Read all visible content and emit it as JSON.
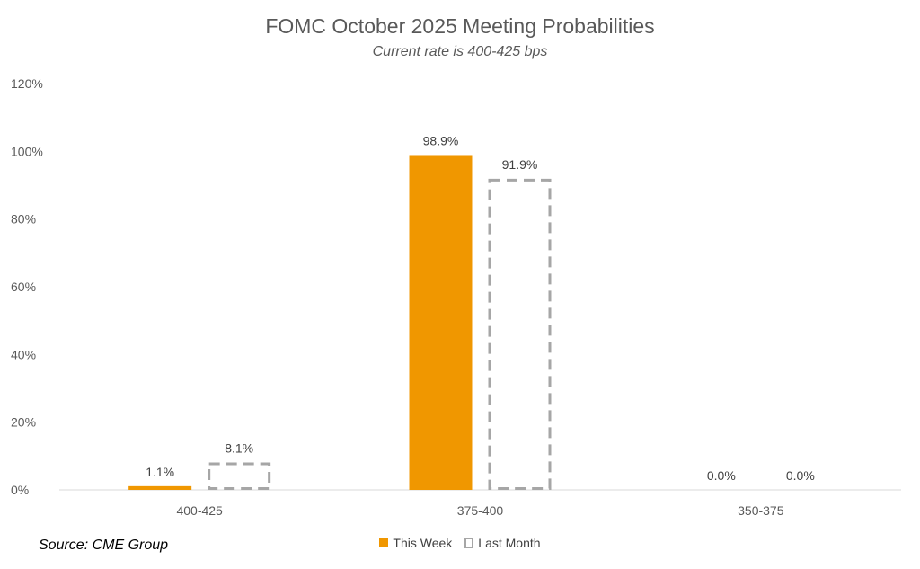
{
  "chart_data": {
    "type": "bar",
    "title": "FOMC October 2025 Meeting Probabilities",
    "subtitle": "Current rate is 400-425 bps",
    "source": "Source: CME Group",
    "categories": [
      "400-425",
      "375-400",
      "350-375"
    ],
    "series": [
      {
        "name": "This Week",
        "values": [
          1.1,
          98.9,
          0.0
        ],
        "labels": [
          "1.1%",
          "98.9%",
          "0.0%"
        ],
        "color": "#f09700",
        "style": "solid"
      },
      {
        "name": "Last Month",
        "values": [
          8.1,
          91.9,
          0.0
        ],
        "labels": [
          "8.1%",
          "91.9%",
          "0.0%"
        ],
        "color": "#a6a6a6",
        "style": "dashed-outline"
      }
    ],
    "ylim": [
      0,
      120
    ],
    "yticks": [
      0,
      20,
      40,
      60,
      80,
      100,
      120
    ],
    "ytick_labels": [
      "0%",
      "20%",
      "40%",
      "60%",
      "80%",
      "100%",
      "120%"
    ],
    "xlabel": "",
    "ylabel": "",
    "grid": false,
    "legend_position": "bottom"
  }
}
